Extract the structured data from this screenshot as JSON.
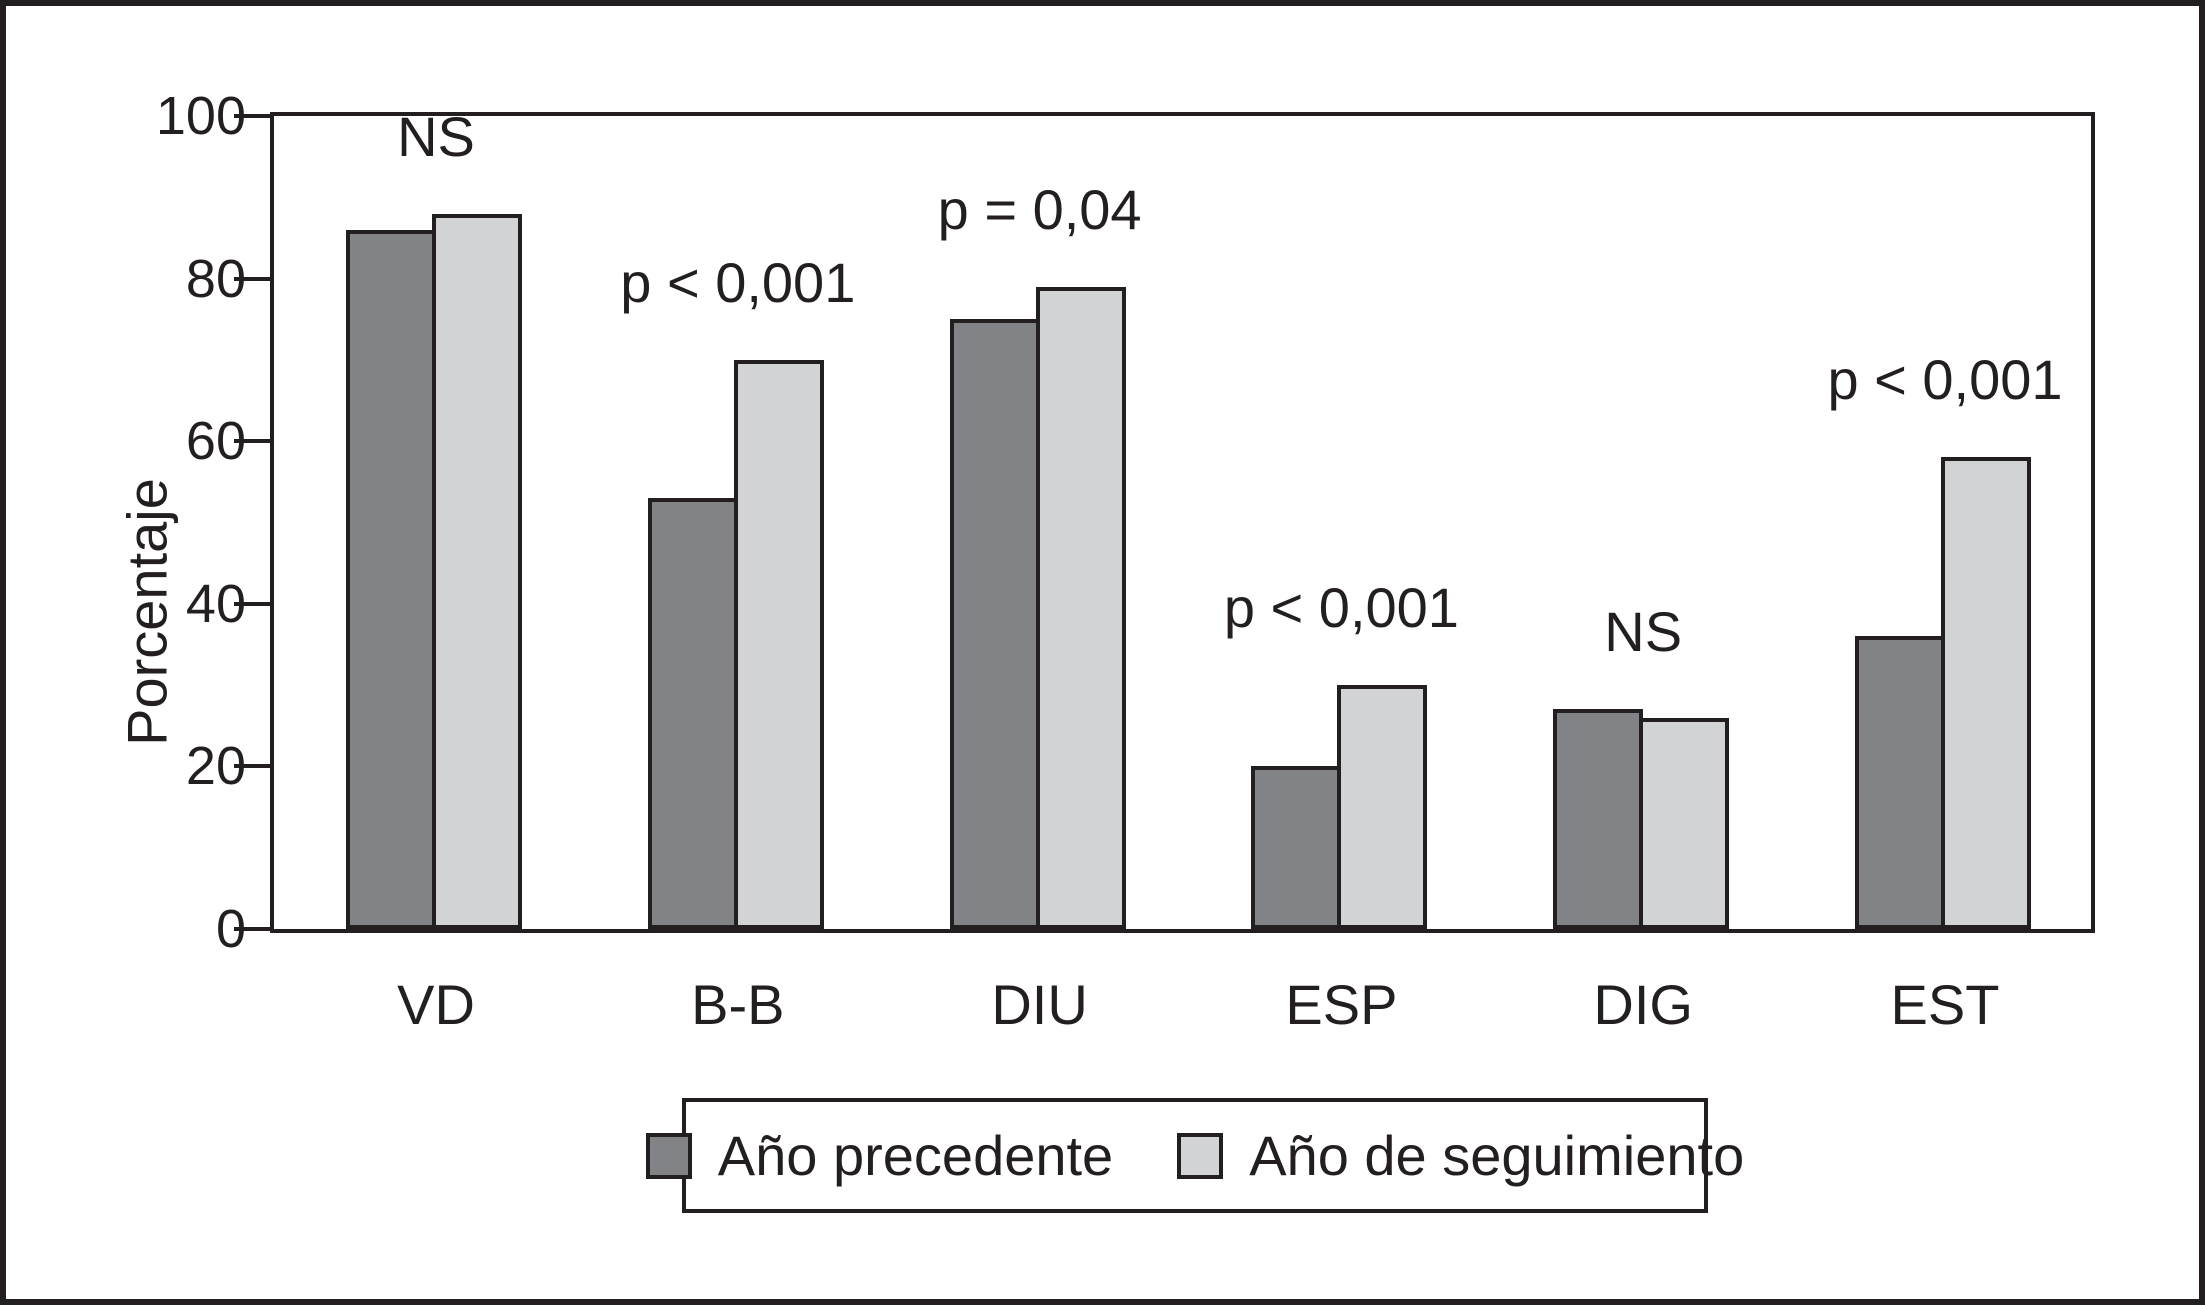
{
  "figure": {
    "ylabel": "Porcentaje"
  },
  "chart_data": {
    "type": "bar",
    "categories": [
      "VD",
      "B-B",
      "DIU",
      "ESP",
      "DIG",
      "EST"
    ],
    "series": [
      {
        "name": "Año precedente",
        "values": [
          86,
          53,
          75,
          20,
          27,
          36
        ]
      },
      {
        "name": "Año de seguimiento",
        "values": [
          88,
          70,
          79,
          30,
          26,
          58
        ]
      }
    ],
    "annotations": [
      "NS",
      "p < 0,001",
      "p = 0,04",
      "p < 0,001",
      "NS",
      "p < 0,001"
    ],
    "title": "",
    "xlabel": "",
    "ylabel": "Porcentaje",
    "ylim": [
      0,
      100
    ],
    "yticks": [
      0,
      20,
      40,
      60,
      80,
      100
    ],
    "grid": false,
    "legend_position": "bottom",
    "colors": {
      "ano_precedente": "#818387",
      "ano_de_seguimiento": "#d2d3d5",
      "ink": "#231f20",
      "background": "#ffffff"
    }
  }
}
